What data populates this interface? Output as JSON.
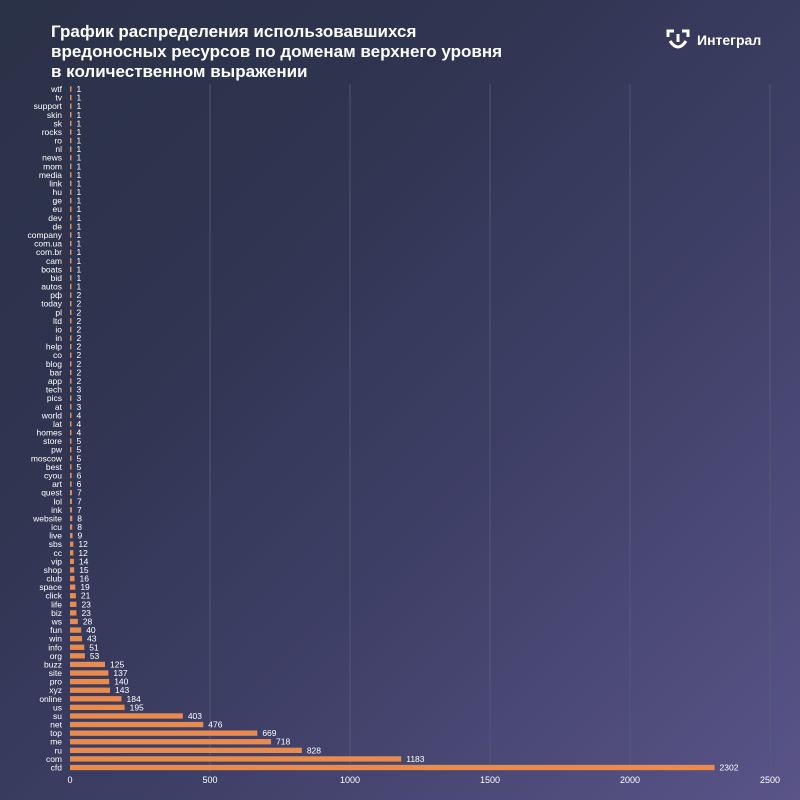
{
  "header": {
    "title_lines": [
      "График распределения использовавшихся",
      "вредоносных ресурсов по доменам верхнего уровня",
      "в количественном выражении"
    ],
    "logo_text": "Интеграл",
    "logo_icon": "integral-logo-icon"
  },
  "colors": {
    "bar": "#e98b4d",
    "text": "#ffffff",
    "grid": "#56607a"
  },
  "chart_data": {
    "type": "bar",
    "orientation": "horizontal",
    "title": "График распределения использовавшихся вредоносных ресурсов по доменам верхнего уровня в количественном выражении",
    "xlabel": "",
    "ylabel": "",
    "xlim": [
      0,
      2500
    ],
    "xticks": [
      0,
      500,
      1000,
      1500,
      2000,
      2500
    ],
    "grid": "vertical",
    "legend": "none",
    "categories": [
      "wtf",
      "tv",
      "support",
      "skin",
      "sk",
      "rocks",
      "ro",
      "nl",
      "news",
      "mom",
      "media",
      "link",
      "hu",
      "ge",
      "eu",
      "dev",
      "de",
      "company",
      "com.ua",
      "com.br",
      "cam",
      "boats",
      "bid",
      "autos",
      "рф",
      "today",
      "pl",
      "ltd",
      "io",
      "in",
      "help",
      "co",
      "blog",
      "bar",
      "app",
      "tech",
      "pics",
      "at",
      "world",
      "lat",
      "homes",
      "store",
      "pw",
      "moscow",
      "best",
      "cyou",
      "art",
      "quest",
      "lol",
      "ink",
      "website",
      "icu",
      "live",
      "sbs",
      "cc",
      "vip",
      "shop",
      "club",
      "space",
      "click",
      "life",
      "biz",
      "ws",
      "fun",
      "win",
      "info",
      "org",
      "buzz",
      "site",
      "pro",
      "xyz",
      "online",
      "us",
      "su",
      "net",
      "top",
      "me",
      "ru",
      "com",
      "cfd"
    ],
    "values": [
      1,
      1,
      1,
      1,
      1,
      1,
      1,
      1,
      1,
      1,
      1,
      1,
      1,
      1,
      1,
      1,
      1,
      1,
      1,
      1,
      1,
      1,
      1,
      1,
      2,
      2,
      2,
      2,
      2,
      2,
      2,
      2,
      2,
      2,
      2,
      3,
      3,
      3,
      4,
      4,
      4,
      5,
      5,
      5,
      5,
      6,
      6,
      7,
      7,
      7,
      8,
      8,
      9,
      12,
      12,
      14,
      15,
      16,
      19,
      21,
      23,
      23,
      28,
      40,
      43,
      51,
      53,
      125,
      137,
      140,
      143,
      184,
      195,
      403,
      476,
      669,
      718,
      828,
      1183,
      2302
    ]
  }
}
